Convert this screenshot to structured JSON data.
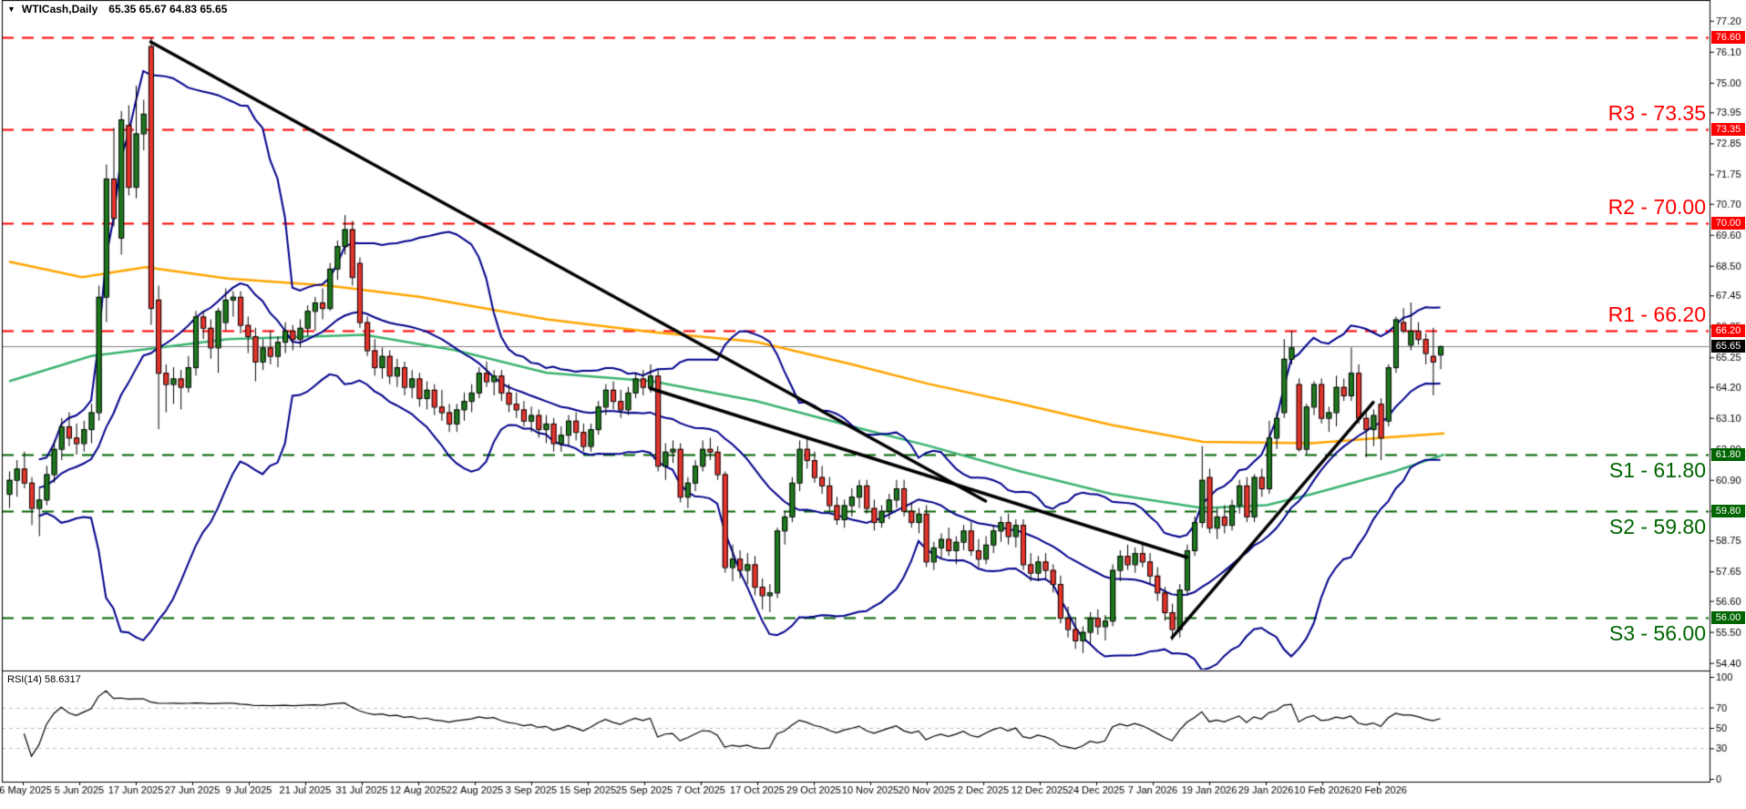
{
  "window": {
    "dropdown_icon": "▼",
    "symbol": "WTICash,Daily",
    "quote": "65.35 65.67 64.83 65.65"
  },
  "rsi_panel": {
    "label": "RSI(14) 58.6317",
    "axis_ticks": [
      100,
      70,
      50,
      30,
      0
    ],
    "dashed_levels": [
      70,
      50,
      30
    ],
    "line_color": "#000000",
    "grid_color": "#c0c0c0",
    "period": 14,
    "value": 58.6317
  },
  "colors": {
    "candle_up": "#1F7A1F",
    "candle_down": "#E8352E",
    "candle_outline": "#000000",
    "bollinger": "#00008B",
    "ma_fast": "#3CB371",
    "ma_slow": "#FFA500",
    "trendline": "#000000",
    "resistance": "#FF0000",
    "support": "#006400",
    "current_price_line": "#808080",
    "current_price_badge": "#000000",
    "axis_text": "#000000"
  },
  "current_price": {
    "value": 65.65,
    "badge": "65.65"
  },
  "chart_data": {
    "type": "candlestick",
    "title": "WTICash Daily with Bollinger Bands, MAs, pivot levels and RSI(14)",
    "ylim": [
      54.13,
      77.94
    ],
    "rsi_ylim": [
      0,
      100
    ],
    "price_ticks": [
      77.2,
      76.1,
      75.0,
      73.95,
      72.85,
      71.75,
      70.7,
      69.6,
      68.5,
      67.45,
      66.35,
      65.25,
      64.2,
      63.1,
      62.0,
      60.9,
      59.8,
      58.75,
      57.65,
      56.6,
      55.5,
      54.4
    ],
    "x_labels": [
      "26 May 2025",
      "5 Jun 2025",
      "17 Jun 2025",
      "27 Jun 2025",
      "9 Jul 2025",
      "21 Jul 2025",
      "31 Jul 2025",
      "12 Aug 2025",
      "22 Aug 2025",
      "3 Sep 2025",
      "15 Sep 2025",
      "25 Sep 2025",
      "7 Oct 2025",
      "17 Oct 2025",
      "29 Oct 2025",
      "10 Nov 2025",
      "20 Nov 2025",
      "2 Dec 2025",
      "12 Dec 2025",
      "24 Dec 2025",
      "7 Jan 2026",
      "19 Jan 2026",
      "29 Jan 2026",
      "10 Feb 2026",
      "20 Feb 2026"
    ],
    "levels": [
      {
        "id": "res-7660",
        "price": 76.6,
        "kind": "resistance",
        "badge": "76.60",
        "label": "",
        "side": "above"
      },
      {
        "id": "r3",
        "price": 73.35,
        "kind": "resistance",
        "badge": "73.35",
        "label": "R3 - 73.35",
        "side": "above"
      },
      {
        "id": "r2",
        "price": 70.0,
        "kind": "resistance",
        "badge": "70.00",
        "label": "R2 - 70.00",
        "side": "above"
      },
      {
        "id": "r1",
        "price": 66.2,
        "kind": "resistance",
        "badge": "66.20",
        "label": "R1 - 66.20",
        "side": "above"
      },
      {
        "id": "s1",
        "price": 61.8,
        "kind": "support",
        "badge": "61.80",
        "label": "S1 - 61.80",
        "side": "below"
      },
      {
        "id": "s2",
        "price": 59.8,
        "kind": "support",
        "badge": "59.80",
        "label": "S2 - 59.80",
        "side": "below"
      },
      {
        "id": "s3",
        "price": 56.0,
        "kind": "support",
        "badge": "56.00",
        "label": "S3 - 56.00",
        "side": "below"
      }
    ],
    "trendlines": [
      {
        "from_index": 19,
        "from_price": 76.45,
        "to_index": 131,
        "to_price": 60.15
      },
      {
        "from_index": 86,
        "from_price": 64.15,
        "to_index": 158,
        "to_price": 58.15
      },
      {
        "from_index": 156,
        "from_price": 55.3,
        "to_index": 183,
        "to_price": 63.65
      }
    ],
    "indicators": {
      "bollinger": {
        "period": 20,
        "deviation": 2
      },
      "ma_fast_points": [
        [
          10,
          64.4
        ],
        [
          100,
          65.3
        ],
        [
          250,
          65.9
        ],
        [
          400,
          66.05
        ],
        [
          500,
          65.5
        ],
        [
          600,
          64.7
        ],
        [
          716,
          64.4
        ],
        [
          830,
          63.7
        ],
        [
          935,
          62.8
        ],
        [
          1020,
          62.1
        ],
        [
          1120,
          61.2
        ],
        [
          1220,
          60.4
        ],
        [
          1320,
          59.9
        ],
        [
          1390,
          60.0
        ],
        [
          1440,
          60.4
        ],
        [
          1530,
          61.2
        ],
        [
          1585,
          61.8
        ]
      ],
      "ma_slow_points": [
        [
          10,
          68.65
        ],
        [
          90,
          68.1
        ],
        [
          160,
          68.45
        ],
        [
          250,
          68.05
        ],
        [
          360,
          67.8
        ],
        [
          460,
          67.4
        ],
        [
          600,
          66.6
        ],
        [
          716,
          66.15
        ],
        [
          830,
          65.8
        ],
        [
          935,
          65.0
        ],
        [
          1020,
          64.3
        ],
        [
          1120,
          63.6
        ],
        [
          1220,
          62.85
        ],
        [
          1320,
          62.25
        ],
        [
          1440,
          62.2
        ],
        [
          1520,
          62.4
        ],
        [
          1585,
          62.55
        ]
      ]
    },
    "ohlc": [
      [
        60.4,
        61.2,
        59.9,
        60.9
      ],
      [
        60.9,
        61.6,
        60.3,
        61.3
      ],
      [
        61.3,
        61.9,
        60.6,
        60.8
      ],
      [
        60.8,
        61.0,
        59.3,
        59.9
      ],
      [
        59.9,
        60.6,
        58.9,
        60.2
      ],
      [
        60.2,
        61.4,
        60.0,
        61.1
      ],
      [
        61.1,
        62.3,
        60.8,
        62.0
      ],
      [
        62.0,
        63.1,
        61.6,
        62.8
      ],
      [
        62.8,
        63.3,
        62.1,
        62.4
      ],
      [
        62.4,
        62.9,
        61.8,
        62.2
      ],
      [
        62.2,
        63.0,
        61.9,
        62.7
      ],
      [
        62.7,
        63.6,
        62.2,
        63.3
      ],
      [
        63.3,
        67.8,
        63.0,
        67.4
      ],
      [
        67.4,
        72.1,
        66.5,
        71.6
      ],
      [
        71.6,
        73.4,
        69.9,
        70.2
      ],
      [
        69.5,
        74.0,
        68.9,
        73.7
      ],
      [
        73.5,
        74.2,
        71.0,
        71.3
      ],
      [
        71.3,
        74.9,
        70.9,
        73.2
      ],
      [
        73.2,
        74.4,
        72.6,
        73.9
      ],
      [
        76.3,
        76.6,
        66.4,
        67.0
      ],
      [
        67.3,
        67.8,
        62.7,
        64.7
      ],
      [
        64.7,
        65.0,
        63.3,
        64.3
      ],
      [
        64.3,
        64.9,
        63.6,
        64.5
      ],
      [
        64.5,
        64.8,
        63.4,
        64.2
      ],
      [
        64.2,
        65.3,
        64.0,
        64.9
      ],
      [
        64.9,
        66.9,
        64.6,
        66.7
      ],
      [
        66.7,
        66.9,
        65.9,
        66.3
      ],
      [
        66.3,
        66.6,
        65.2,
        65.6
      ],
      [
        65.6,
        67.0,
        64.7,
        66.9
      ],
      [
        66.5,
        67.7,
        66.2,
        67.3
      ],
      [
        67.3,
        67.6,
        66.7,
        67.4
      ],
      [
        67.4,
        67.6,
        66.1,
        66.4
      ],
      [
        66.4,
        66.7,
        65.4,
        66.0
      ],
      [
        66.0,
        66.3,
        64.4,
        65.1
      ],
      [
        65.1,
        65.9,
        64.8,
        65.6
      ],
      [
        65.6,
        66.2,
        65.0,
        65.3
      ],
      [
        65.3,
        66.0,
        64.9,
        65.8
      ],
      [
        65.8,
        66.5,
        65.4,
        66.2
      ],
      [
        66.2,
        66.4,
        65.5,
        65.9
      ],
      [
        65.9,
        66.6,
        65.6,
        66.3
      ],
      [
        66.3,
        67.1,
        66.0,
        66.9
      ],
      [
        66.9,
        67.4,
        66.2,
        67.2
      ],
      [
        67.2,
        67.7,
        66.6,
        67.0
      ],
      [
        67.0,
        68.6,
        66.9,
        68.4
      ],
      [
        68.4,
        69.4,
        68.0,
        69.2
      ],
      [
        69.2,
        70.3,
        68.9,
        69.8
      ],
      [
        69.8,
        70.1,
        67.8,
        68.1
      ],
      [
        68.6,
        68.8,
        66.3,
        66.5
      ],
      [
        66.5,
        66.7,
        65.3,
        65.5
      ],
      [
        65.5,
        65.9,
        64.6,
        64.9
      ],
      [
        64.9,
        65.6,
        64.5,
        65.3
      ],
      [
        65.3,
        65.5,
        64.3,
        64.6
      ],
      [
        64.6,
        65.2,
        64.2,
        64.9
      ],
      [
        64.9,
        65.1,
        63.9,
        64.2
      ],
      [
        64.2,
        64.8,
        63.8,
        64.5
      ],
      [
        64.5,
        64.7,
        63.5,
        63.8
      ],
      [
        63.8,
        64.4,
        63.4,
        64.1
      ],
      [
        64.1,
        64.3,
        63.2,
        63.5
      ],
      [
        63.5,
        64.1,
        63.0,
        63.3
      ],
      [
        63.3,
        63.6,
        62.6,
        62.9
      ],
      [
        62.9,
        63.6,
        62.6,
        63.4
      ],
      [
        63.4,
        64.0,
        63.0,
        63.7
      ],
      [
        63.7,
        64.3,
        63.3,
        64.0
      ],
      [
        64.0,
        64.9,
        63.8,
        64.7
      ],
      [
        64.7,
        65.1,
        64.2,
        64.4
      ],
      [
        64.4,
        64.8,
        63.9,
        64.6
      ],
      [
        64.6,
        64.8,
        63.7,
        64.0
      ],
      [
        64.0,
        64.3,
        63.3,
        63.6
      ],
      [
        63.6,
        64.0,
        63.1,
        63.4
      ],
      [
        63.4,
        63.7,
        62.8,
        63.0
      ],
      [
        63.0,
        63.5,
        62.6,
        63.2
      ],
      [
        63.2,
        63.4,
        62.4,
        62.7
      ],
      [
        62.7,
        63.2,
        62.2,
        62.9
      ],
      [
        62.9,
        63.1,
        61.9,
        62.2
      ],
      [
        62.2,
        62.8,
        61.9,
        62.5
      ],
      [
        62.5,
        63.2,
        62.1,
        63.0
      ],
      [
        63.0,
        63.3,
        62.3,
        62.6
      ],
      [
        62.6,
        62.9,
        61.9,
        62.1
      ],
      [
        62.1,
        62.9,
        61.9,
        62.7
      ],
      [
        62.7,
        63.7,
        62.5,
        63.5
      ],
      [
        63.5,
        64.3,
        63.2,
        64.1
      ],
      [
        64.1,
        64.4,
        63.4,
        63.7
      ],
      [
        63.7,
        64.1,
        63.1,
        63.4
      ],
      [
        63.4,
        64.2,
        63.2,
        64.0
      ],
      [
        64.0,
        64.7,
        63.8,
        64.5
      ],
      [
        64.5,
        64.8,
        63.9,
        64.2
      ],
      [
        64.2,
        65.0,
        64.0,
        64.6
      ],
      [
        64.6,
        64.8,
        61.2,
        61.4
      ],
      [
        61.4,
        62.2,
        60.9,
        61.9
      ],
      [
        61.9,
        62.3,
        61.5,
        62.0
      ],
      [
        62.0,
        62.2,
        60.1,
        60.3
      ],
      [
        60.3,
        61.0,
        59.9,
        60.8
      ],
      [
        60.8,
        61.6,
        60.5,
        61.4
      ],
      [
        61.4,
        62.3,
        61.2,
        62.0
      ],
      [
        62.0,
        62.4,
        61.6,
        61.9
      ],
      [
        61.9,
        62.1,
        60.9,
        61.1
      ],
      [
        61.1,
        61.2,
        57.6,
        57.8
      ],
      [
        57.8,
        58.6,
        57.3,
        58.1
      ],
      [
        58.1,
        58.4,
        57.4,
        57.7
      ],
      [
        57.7,
        58.3,
        57.2,
        57.9
      ],
      [
        57.9,
        58.2,
        56.8,
        57.1
      ],
      [
        57.1,
        57.4,
        56.3,
        56.8
      ],
      [
        56.8,
        57.2,
        56.2,
        56.9
      ],
      [
        56.9,
        59.2,
        56.7,
        59.1
      ],
      [
        59.1,
        59.8,
        58.6,
        59.6
      ],
      [
        59.6,
        61.0,
        59.4,
        60.8
      ],
      [
        60.8,
        62.3,
        60.5,
        62.0
      ],
      [
        62.0,
        62.4,
        61.3,
        61.6
      ],
      [
        61.6,
        61.9,
        60.8,
        61.0
      ],
      [
        61.0,
        61.4,
        60.4,
        60.7
      ],
      [
        60.7,
        61.0,
        59.8,
        60.0
      ],
      [
        60.0,
        60.3,
        59.3,
        59.5
      ],
      [
        59.5,
        60.2,
        59.2,
        60.0
      ],
      [
        60.0,
        60.6,
        59.6,
        60.3
      ],
      [
        60.3,
        60.9,
        59.9,
        60.7
      ],
      [
        60.7,
        60.9,
        59.7,
        59.9
      ],
      [
        59.9,
        60.2,
        59.1,
        59.4
      ],
      [
        59.4,
        60.0,
        59.2,
        59.8
      ],
      [
        59.8,
        60.4,
        59.5,
        60.2
      ],
      [
        60.2,
        60.9,
        59.9,
        60.6
      ],
      [
        60.6,
        60.9,
        59.6,
        59.8
      ],
      [
        59.8,
        60.1,
        59.2,
        59.4
      ],
      [
        59.4,
        59.9,
        59.0,
        59.7
      ],
      [
        59.7,
        60.0,
        57.8,
        58.0
      ],
      [
        58.0,
        58.7,
        57.7,
        58.5
      ],
      [
        58.5,
        59.0,
        58.1,
        58.8
      ],
      [
        58.8,
        59.2,
        58.2,
        58.4
      ],
      [
        58.4,
        58.9,
        57.9,
        58.7
      ],
      [
        58.7,
        59.3,
        58.4,
        59.1
      ],
      [
        59.1,
        59.4,
        58.2,
        58.4
      ],
      [
        58.4,
        58.8,
        57.8,
        58.1
      ],
      [
        58.1,
        58.9,
        57.9,
        58.6
      ],
      [
        58.6,
        59.3,
        58.3,
        59.1
      ],
      [
        59.1,
        59.6,
        58.7,
        59.4
      ],
      [
        59.4,
        59.7,
        58.6,
        58.9
      ],
      [
        58.9,
        59.5,
        58.5,
        59.3
      ],
      [
        59.3,
        59.5,
        57.7,
        57.9
      ],
      [
        57.9,
        58.3,
        57.3,
        57.6
      ],
      [
        57.6,
        58.2,
        57.3,
        58.0
      ],
      [
        58.0,
        58.3,
        57.4,
        57.7
      ],
      [
        57.7,
        57.9,
        56.9,
        57.2
      ],
      [
        57.2,
        57.5,
        55.8,
        56.0
      ],
      [
        56.0,
        56.4,
        55.3,
        55.6
      ],
      [
        55.6,
        56.0,
        54.9,
        55.2
      ],
      [
        55.2,
        55.7,
        54.75,
        55.5
      ],
      [
        55.5,
        56.2,
        55.1,
        56.0
      ],
      [
        56.0,
        56.3,
        55.4,
        55.7
      ],
      [
        55.7,
        56.1,
        55.2,
        55.9
      ],
      [
        55.9,
        57.9,
        55.7,
        57.7
      ],
      [
        57.7,
        58.4,
        57.3,
        58.2
      ],
      [
        58.2,
        58.6,
        57.7,
        57.9
      ],
      [
        57.9,
        58.5,
        57.6,
        58.3
      ],
      [
        58.3,
        58.7,
        57.8,
        58.0
      ],
      [
        58.0,
        58.3,
        57.2,
        57.5
      ],
      [
        57.5,
        57.8,
        56.6,
        56.9
      ],
      [
        56.9,
        57.1,
        55.9,
        56.2
      ],
      [
        56.2,
        56.5,
        55.2,
        55.6
      ],
      [
        55.6,
        57.2,
        55.3,
        57.0
      ],
      [
        57.0,
        58.6,
        56.8,
        58.4
      ],
      [
        58.4,
        59.6,
        58.2,
        59.4
      ],
      [
        59.4,
        62.1,
        59.2,
        60.9
      ],
      [
        61.0,
        61.3,
        59.0,
        59.2
      ],
      [
        59.2,
        59.9,
        58.8,
        59.6
      ],
      [
        59.6,
        60.0,
        59.0,
        59.3
      ],
      [
        59.3,
        60.2,
        59.1,
        60.0
      ],
      [
        60.0,
        60.9,
        59.7,
        60.7
      ],
      [
        60.7,
        61.0,
        59.4,
        59.6
      ],
      [
        59.6,
        61.1,
        59.4,
        61.0
      ],
      [
        61.0,
        61.3,
        60.3,
        60.6
      ],
      [
        60.6,
        63.0,
        60.4,
        62.4
      ],
      [
        62.4,
        63.3,
        62.0,
        63.1
      ],
      [
        63.3,
        65.9,
        63.1,
        65.2
      ],
      [
        65.2,
        66.2,
        65.0,
        65.6
      ],
      [
        64.3,
        64.5,
        61.9,
        62.0
      ],
      [
        62.0,
        63.6,
        61.8,
        63.5
      ],
      [
        63.5,
        64.4,
        63.2,
        64.3
      ],
      [
        64.3,
        64.5,
        62.9,
        63.1
      ],
      [
        63.1,
        63.5,
        62.6,
        63.3
      ],
      [
        63.3,
        64.6,
        62.8,
        64.2
      ],
      [
        64.2,
        64.5,
        63.7,
        63.9
      ],
      [
        63.9,
        65.6,
        63.7,
        64.7
      ],
      [
        64.7,
        65.0,
        62.9,
        63.1
      ],
      [
        63.1,
        63.3,
        61.7,
        62.7
      ],
      [
        62.7,
        63.4,
        62.1,
        63.2
      ],
      [
        63.6,
        63.8,
        61.6,
        62.4
      ],
      [
        63.0,
        65.0,
        62.8,
        64.9
      ],
      [
        64.9,
        66.7,
        64.7,
        66.6
      ],
      [
        66.5,
        67.0,
        66.1,
        66.2
      ],
      [
        65.7,
        67.2,
        65.5,
        66.2
      ],
      [
        66.2,
        66.5,
        65.7,
        65.9
      ],
      [
        65.9,
        66.1,
        65.0,
        65.4
      ],
      [
        65.3,
        66.3,
        63.9,
        65.1
      ],
      [
        65.35,
        65.67,
        64.83,
        65.65
      ]
    ]
  }
}
